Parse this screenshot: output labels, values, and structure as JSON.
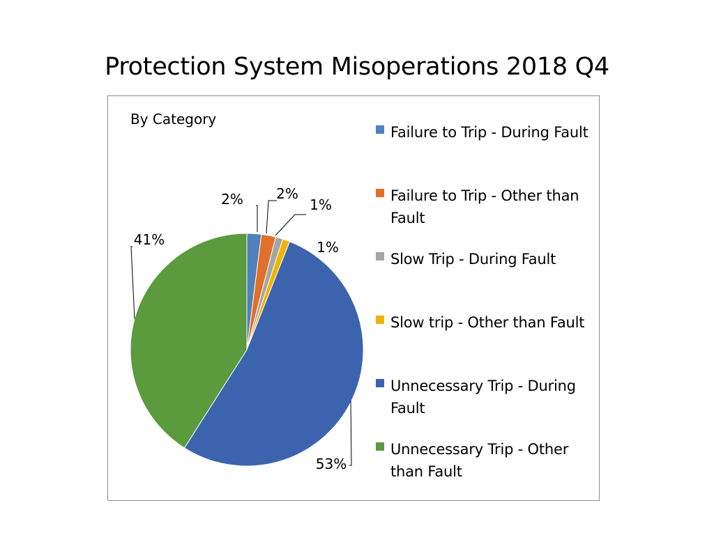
{
  "slide": {
    "title": "Protection System Misoperations 2018 Q4"
  },
  "chart_data": {
    "type": "pie",
    "title": "Protection System Misoperations 2018 Q4",
    "subtitle": "By Category",
    "slices": [
      {
        "label": "Failure to Trip - During Fault",
        "value": 2,
        "display": "2%",
        "color": "#4f81bd"
      },
      {
        "label": "Failure to Trip - Other than Fault",
        "value": 2,
        "display": "2%",
        "color": "#e0702a"
      },
      {
        "label": "Slow Trip - During Fault",
        "value": 1,
        "display": "1%",
        "color": "#a5a5a5"
      },
      {
        "label": "Slow trip - Other than Fault",
        "value": 1,
        "display": "1%",
        "color": "#f0b400"
      },
      {
        "label": "Unnecessary Trip - During Fault",
        "value": 53,
        "display": "53%",
        "color": "#3c64ae"
      },
      {
        "label": "Unnecessary Trip - Other than Fault",
        "value": 41,
        "display": "41%",
        "color": "#5b9a3d"
      }
    ],
    "legend_position": "right"
  }
}
